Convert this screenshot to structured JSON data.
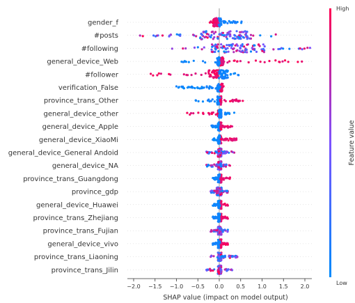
{
  "chart_data": {
    "type": "scatter",
    "xlabel": "SHAP value (impact on model output)",
    "xlim": [
      -2.0,
      2.3
    ],
    "xticks": [
      "−2.0",
      "−1.5",
      "−1.0",
      "−0.5",
      "0.0",
      "0.5",
      "1.0",
      "1.5",
      "2.0"
    ],
    "xtick_values": [
      -2.0,
      -1.5,
      -1.0,
      -0.5,
      0.0,
      0.5,
      1.0,
      1.5,
      2.0
    ],
    "colorbar": {
      "label": "Feature value",
      "high": "High",
      "low": "Low"
    },
    "colors": {
      "low": "#008bfb",
      "high": "#ff0052",
      "zero_line": "#999999"
    },
    "features": [
      {
        "name": "gender_f",
        "range": [
          -0.22,
          0.52
        ],
        "dense": [
          -0.15,
          0.05
        ],
        "high_side": "neg"
      },
      {
        "name": "#posts",
        "range": [
          -1.85,
          1.32
        ],
        "dense": [
          -0.45,
          0.75
        ],
        "high_side": "mixed"
      },
      {
        "name": "#following",
        "range": [
          -1.1,
          2.12
        ],
        "dense": [
          -0.2,
          1.1
        ],
        "high_side": "mixed"
      },
      {
        "name": "general_device_Web",
        "range": [
          -0.88,
          1.93
        ],
        "dense": [
          -0.05,
          0.1
        ],
        "high_side": "pos"
      },
      {
        "name": "#follower",
        "range": [
          -1.6,
          0.45
        ],
        "dense": [
          -0.25,
          0.2
        ],
        "high_side": "neg"
      },
      {
        "name": "verification_False",
        "range": [
          -1.0,
          0.1
        ],
        "dense": [
          -0.05,
          0.08
        ],
        "high_side": "pos"
      },
      {
        "name": "province_trans_Other",
        "range": [
          -0.55,
          0.55
        ],
        "dense": [
          -0.05,
          0.05
        ],
        "high_side": "pos"
      },
      {
        "name": "general_device_other",
        "range": [
          -0.75,
          0.35
        ],
        "dense": [
          -0.03,
          0.05
        ],
        "high_side": "neg"
      },
      {
        "name": "general_device_Apple",
        "range": [
          -0.18,
          0.3
        ],
        "dense": [
          -0.03,
          0.05
        ],
        "high_side": "pos"
      },
      {
        "name": "general_device_XiaoMi",
        "range": [
          -0.15,
          0.4
        ],
        "dense": [
          -0.03,
          0.05
        ],
        "high_side": "pos"
      },
      {
        "name": "general_device_General Andoid",
        "range": [
          -0.3,
          0.35
        ],
        "dense": [
          -0.03,
          0.05
        ],
        "high_side": "mixed"
      },
      {
        "name": "general_device_NA",
        "range": [
          -0.3,
          0.25
        ],
        "dense": [
          -0.03,
          0.05
        ],
        "high_side": "mixed"
      },
      {
        "name": "province_trans_Guangdong",
        "range": [
          -0.15,
          0.25
        ],
        "dense": [
          -0.03,
          0.05
        ],
        "high_side": "pos"
      },
      {
        "name": "province_gdp",
        "range": [
          -0.2,
          0.2
        ],
        "dense": [
          -0.06,
          0.06
        ],
        "high_side": "mixed"
      },
      {
        "name": "general_device_Huawei",
        "range": [
          -0.15,
          0.2
        ],
        "dense": [
          -0.03,
          0.05
        ],
        "high_side": "pos"
      },
      {
        "name": "province_trans_Zhejiang",
        "range": [
          -0.15,
          0.2
        ],
        "dense": [
          -0.03,
          0.05
        ],
        "high_side": "pos"
      },
      {
        "name": "province_trans_Fujian",
        "range": [
          -0.2,
          0.2
        ],
        "dense": [
          -0.03,
          0.05
        ],
        "high_side": "mixed"
      },
      {
        "name": "general_device_vivo",
        "range": [
          -0.15,
          0.2
        ],
        "dense": [
          -0.03,
          0.05
        ],
        "high_side": "pos"
      },
      {
        "name": "province_trans_Liaoning",
        "range": [
          -0.2,
          0.42
        ],
        "dense": [
          -0.03,
          0.05
        ],
        "high_side": "mixed"
      },
      {
        "name": "province_trans_Jilin",
        "range": [
          -0.3,
          0.3
        ],
        "dense": [
          -0.03,
          0.05
        ],
        "high_side": "mixed"
      }
    ]
  }
}
